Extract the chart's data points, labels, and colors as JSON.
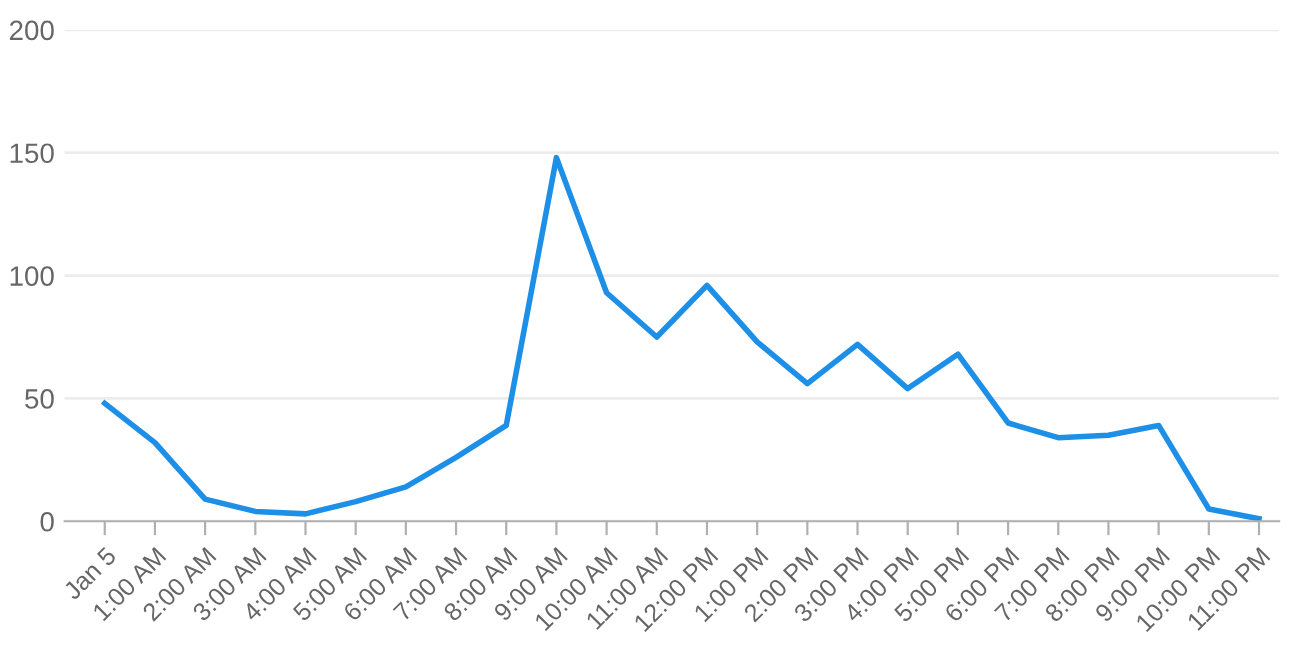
{
  "chart_data": {
    "type": "line",
    "categories": [
      "Jan 5",
      "1:00 AM",
      "2:00 AM",
      "3:00 AM",
      "4:00 AM",
      "5:00 AM",
      "6:00 AM",
      "7:00 AM",
      "8:00 AM",
      "9:00 AM",
      "10:00 AM",
      "11:00 AM",
      "12:00 PM",
      "1:00 PM",
      "2:00 PM",
      "3:00 PM",
      "4:00 PM",
      "5:00 PM",
      "6:00 PM",
      "7:00 PM",
      "8:00 PM",
      "9:00 PM",
      "10:00 PM",
      "11:00 PM"
    ],
    "series": [
      {
        "color": "#1e8fe6",
        "values": [
          48,
          32,
          9,
          4,
          3,
          8,
          14,
          26,
          39,
          148,
          93,
          75,
          96,
          73,
          56,
          72,
          54,
          68,
          40,
          34,
          35,
          39,
          5,
          1
        ]
      }
    ],
    "ylim": [
      0,
      200
    ],
    "yticks": [
      0,
      50,
      100,
      150,
      200
    ],
    "grid": "y",
    "marker": "none",
    "line_style": "solid"
  }
}
